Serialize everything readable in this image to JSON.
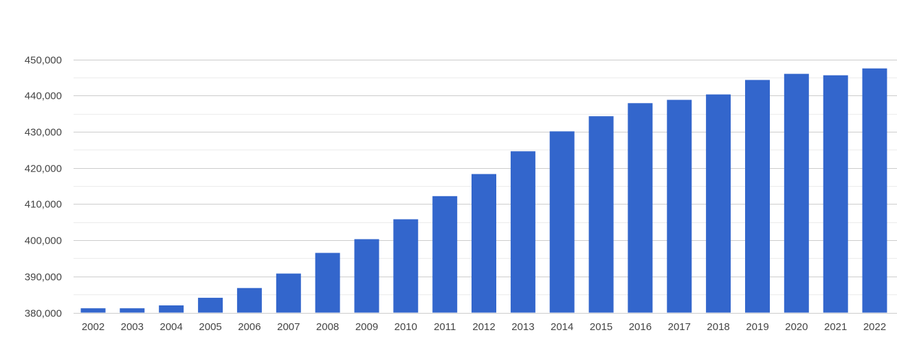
{
  "chart_data": {
    "type": "bar",
    "title": "",
    "xlabel": "",
    "ylabel": "",
    "categories": [
      "2002",
      "2003",
      "2004",
      "2005",
      "2006",
      "2007",
      "2008",
      "2009",
      "2010",
      "2011",
      "2012",
      "2013",
      "2014",
      "2015",
      "2016",
      "2017",
      "2018",
      "2019",
      "2020",
      "2021",
      "2022"
    ],
    "values": [
      381200,
      381200,
      382000,
      384100,
      386800,
      390800,
      396500,
      400300,
      405800,
      412200,
      418300,
      424600,
      430100,
      434300,
      437900,
      438800,
      440300,
      444300,
      446000,
      445600,
      447500
    ],
    "ylim": [
      380000,
      450000
    ],
    "y_ticks": [
      380000,
      390000,
      400000,
      410000,
      420000,
      430000,
      440000,
      450000
    ],
    "y_tick_labels": [
      "380,000",
      "390,000",
      "400,000",
      "410,000",
      "420,000",
      "430,000",
      "440,000",
      "450,000"
    ],
    "grid": true,
    "bar_color": "#3366cc",
    "legend": "none"
  }
}
